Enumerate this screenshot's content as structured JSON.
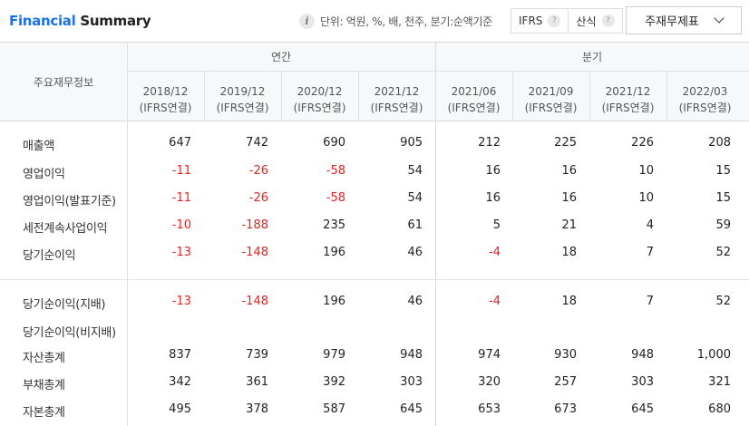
{
  "header": {
    "title_part1": "Financial",
    "title_part2": "Summary",
    "info_icon": "i",
    "unit_text": "단위: 억원, %, 배, 천주, 분기:순액기준",
    "toggle": [
      {
        "label": "IFRS",
        "help": "?"
      },
      {
        "label": "산식",
        "help": "?"
      }
    ],
    "select": {
      "label": "주재무제표",
      "icon": "chevron-down-icon"
    }
  },
  "table": {
    "corner_label": "주요재무정보",
    "groups": [
      {
        "label": "연간"
      },
      {
        "label": "분기"
      }
    ],
    "periods": [
      {
        "date": "2018/12",
        "basis": "(IFRS연결)"
      },
      {
        "date": "2019/12",
        "basis": "(IFRS연결)"
      },
      {
        "date": "2020/12",
        "basis": "(IFRS연결)"
      },
      {
        "date": "2021/12",
        "basis": "(IFRS연결)"
      },
      {
        "date": "2021/06",
        "basis": "(IFRS연결)"
      },
      {
        "date": "2021/09",
        "basis": "(IFRS연결)"
      },
      {
        "date": "2021/12",
        "basis": "(IFRS연결)"
      },
      {
        "date": "2022/03",
        "basis": "(IFRS연결)"
      }
    ],
    "rows": [
      {
        "label": "매출액",
        "values": [
          "647",
          "742",
          "690",
          "905",
          "212",
          "225",
          "226",
          "208"
        ]
      },
      {
        "label": "영업이익",
        "values": [
          "-11",
          "-26",
          "-58",
          "54",
          "16",
          "16",
          "10",
          "15"
        ]
      },
      {
        "label": "영업이익(발표기준)",
        "values": [
          "-11",
          "-26",
          "-58",
          "54",
          "16",
          "16",
          "10",
          "15"
        ]
      },
      {
        "label": "세전계속사업이익",
        "values": [
          "-10",
          "-188",
          "235",
          "61",
          "5",
          "21",
          "4",
          "59"
        ]
      },
      {
        "label": "당기순이익",
        "values": [
          "-13",
          "-148",
          "196",
          "46",
          "-4",
          "18",
          "7",
          "52"
        ]
      },
      {
        "label": "당기순이익(지배)",
        "values": [
          "-13",
          "-148",
          "196",
          "46",
          "-4",
          "18",
          "7",
          "52"
        ]
      },
      {
        "label": "당기순이익(비지배)",
        "values": [
          "",
          "",
          "",
          "",
          "",
          "",
          "",
          ""
        ]
      },
      {
        "label": "자산총계",
        "values": [
          "837",
          "739",
          "979",
          "948",
          "974",
          "930",
          "948",
          "1,000"
        ]
      },
      {
        "label": "부채총계",
        "values": [
          "342",
          "361",
          "392",
          "303",
          "320",
          "257",
          "303",
          "321"
        ]
      },
      {
        "label": "자본총계",
        "values": [
          "495",
          "378",
          "587",
          "645",
          "653",
          "673",
          "645",
          "680"
        ]
      }
    ],
    "colors": {
      "negative": "#e32222",
      "brand": "#1a73e8"
    }
  }
}
